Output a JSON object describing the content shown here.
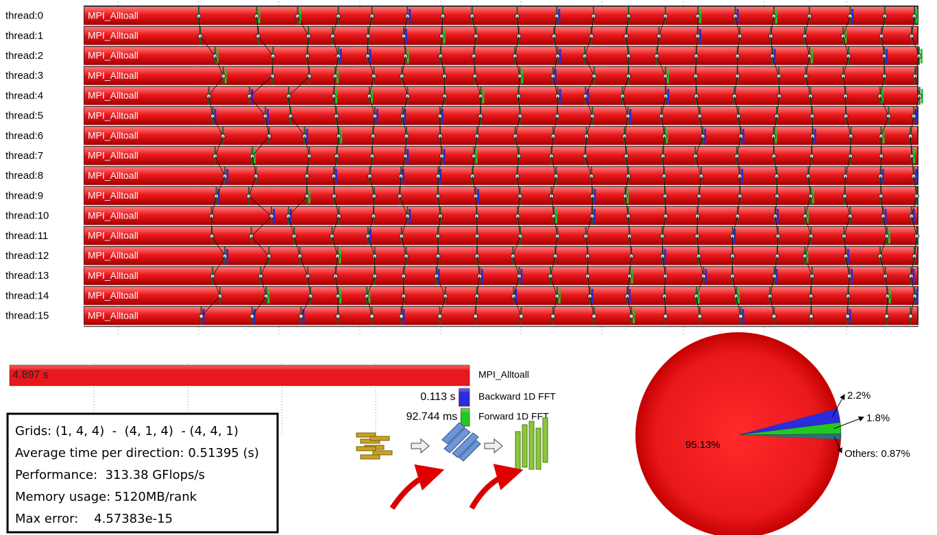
{
  "timeline": {
    "threads": [
      "thread:0",
      "thread:1",
      "thread:2",
      "thread:3",
      "thread:4",
      "thread:5",
      "thread:6",
      "thread:7",
      "thread:8",
      "thread:9",
      "thread:10",
      "thread:11",
      "thread:12",
      "thread:13",
      "thread:14",
      "thread:15"
    ],
    "function_label": "MPI_Alltoall"
  },
  "chart_data": [
    {
      "type": "bar",
      "orientation": "horizontal",
      "categories": [
        "MPI_Alltoall",
        "Backward 1D FFT",
        "Forward 1D FFT"
      ],
      "values": [
        4.897,
        0.113,
        0.092744
      ],
      "value_labels": [
        "4.897 s",
        "0.113 s",
        "92.744 ms"
      ],
      "colors": [
        "#e8181c",
        "#2b2bdf",
        "#22c822"
      ],
      "xlim": [
        5,
        0
      ],
      "xticks": [
        1,
        2,
        3,
        4
      ],
      "grid": true
    },
    {
      "type": "pie",
      "values": [
        95.13,
        2.2,
        1.8,
        0.87
      ],
      "value_labels": [
        "95.13%",
        "2.2%",
        "1.8%",
        "Others: 0.87%"
      ],
      "colors": [
        "#e8181c",
        "#2b2bdf",
        "#22c822",
        "#2f6f7a"
      ]
    }
  ],
  "info_box": {
    "lines": [
      "Grids: (1, 4, 4)  -  (4, 1, 4)  - (4, 4, 1)",
      "Average time per direction: 0.51395 (s)",
      "Performance:  313.38 GFlops/s",
      "Memory usage: 5120MB/rank",
      "Max error:    4.57383e-15"
    ]
  }
}
